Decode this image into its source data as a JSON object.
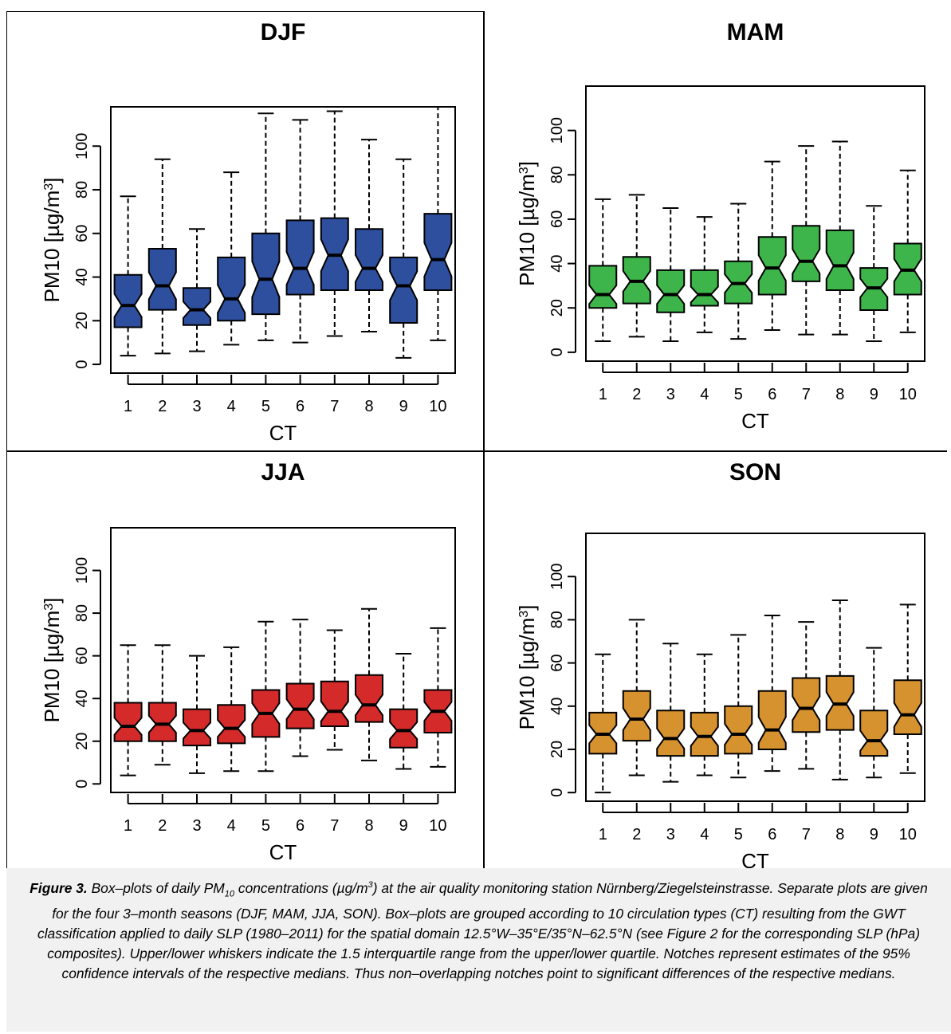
{
  "figure": {
    "caption_label": "Figure 3.",
    "caption_parts": {
      "a": " Box–plots of daily PM",
      "a_sub": "10",
      "b": " concentrations (µg/m",
      "b_sup": "3",
      "c": ") at the air quality monitoring station Nürnberg/Ziegelsteinstrasse. Separate plots are given for the four 3–month seasons (DJF, MAM, JJA, SON). Box–plots are grouped according to 10 circulation types (CT) resulting from the GWT classification applied to daily SLP (1980–2011) for the spatial domain 12.5°W–35°E/35°N–62.5°N (see Figure 2 for the corresponding SLP (hPa) composites). Upper/lower whiskers indicate the 1.5 interquartile range from the upper/lower quartile. Notches represent estimates of the 95% confidence intervals of the respective medians. Thus non–overlapping notches point to significant differences of the respective medians."
    }
  },
  "chart_data": [
    {
      "type": "boxplot",
      "title": "DJF",
      "xlabel": "CT",
      "ylabel_base": "PM10 [µg/m",
      "ylabel_sup": "3",
      "ylabel_close": "]",
      "ylim": [
        -4,
        118
      ],
      "yticks": [
        "0",
        "20",
        "40",
        "60",
        "80",
        "100"
      ],
      "categories": [
        "1",
        "2",
        "3",
        "4",
        "5",
        "6",
        "7",
        "8",
        "9",
        "10"
      ],
      "color": "#2d4f9e",
      "boxes": [
        {
          "whisker_low": 4,
          "q1": 17,
          "median": 27,
          "q3": 41,
          "whisker_high": 77
        },
        {
          "whisker_low": 5,
          "q1": 25,
          "median": 36,
          "q3": 53,
          "whisker_high": 94
        },
        {
          "whisker_low": 6,
          "q1": 18,
          "median": 25,
          "q3": 35,
          "whisker_high": 62
        },
        {
          "whisker_low": 9,
          "q1": 20,
          "median": 30,
          "q3": 49,
          "whisker_high": 88
        },
        {
          "whisker_low": 11,
          "q1": 23,
          "median": 39,
          "q3": 60,
          "whisker_high": 115
        },
        {
          "whisker_low": 10,
          "q1": 32,
          "median": 44,
          "q3": 66,
          "whisker_high": 112
        },
        {
          "whisker_low": 13,
          "q1": 34,
          "median": 50,
          "q3": 67,
          "whisker_high": 116
        },
        {
          "whisker_low": 15,
          "q1": 34,
          "median": 44,
          "q3": 62,
          "whisker_high": 103
        },
        {
          "whisker_low": 3,
          "q1": 19,
          "median": 36,
          "q3": 49,
          "whisker_high": 94
        },
        {
          "whisker_low": 11,
          "q1": 34,
          "median": 48,
          "q3": 69,
          "whisker_high": 118
        }
      ]
    },
    {
      "type": "boxplot",
      "title": "MAM",
      "xlabel": "CT",
      "ylabel_base": "PM10 [µg/m",
      "ylabel_sup": "3",
      "ylabel_close": "]",
      "ylim": [
        -4,
        120
      ],
      "yticks": [
        "0",
        "20",
        "40",
        "60",
        "80",
        "100"
      ],
      "categories": [
        "1",
        "2",
        "3",
        "4",
        "5",
        "6",
        "7",
        "8",
        "9",
        "10"
      ],
      "color": "#3db54a",
      "boxes": [
        {
          "whisker_low": 5,
          "q1": 20,
          "median": 26,
          "q3": 39,
          "whisker_high": 69
        },
        {
          "whisker_low": 7,
          "q1": 22,
          "median": 32,
          "q3": 43,
          "whisker_high": 71
        },
        {
          "whisker_low": 5,
          "q1": 18,
          "median": 26,
          "q3": 37,
          "whisker_high": 65
        },
        {
          "whisker_low": 9,
          "q1": 21,
          "median": 26,
          "q3": 37,
          "whisker_high": 61
        },
        {
          "whisker_low": 6,
          "q1": 22,
          "median": 31,
          "q3": 41,
          "whisker_high": 67
        },
        {
          "whisker_low": 10,
          "q1": 26,
          "median": 38,
          "q3": 52,
          "whisker_high": 86
        },
        {
          "whisker_low": 8,
          "q1": 32,
          "median": 41,
          "q3": 57,
          "whisker_high": 93
        },
        {
          "whisker_low": 8,
          "q1": 28,
          "median": 39,
          "q3": 55,
          "whisker_high": 95
        },
        {
          "whisker_low": 5,
          "q1": 19,
          "median": 29,
          "q3": 38,
          "whisker_high": 66
        },
        {
          "whisker_low": 9,
          "q1": 26,
          "median": 37,
          "q3": 49,
          "whisker_high": 82
        }
      ]
    },
    {
      "type": "boxplot",
      "title": "JJA",
      "xlabel": "CT",
      "ylabel_base": "PM10 [µg/m",
      "ylabel_sup": "3",
      "ylabel_close": "]",
      "ylim": [
        -4,
        120
      ],
      "yticks": [
        "0",
        "20",
        "40",
        "60",
        "80",
        "100"
      ],
      "categories": [
        "1",
        "2",
        "3",
        "4",
        "5",
        "6",
        "7",
        "8",
        "9",
        "10"
      ],
      "color": "#d42a2a",
      "boxes": [
        {
          "whisker_low": 4,
          "q1": 20,
          "median": 27,
          "q3": 38,
          "whisker_high": 65
        },
        {
          "whisker_low": 9,
          "q1": 20,
          "median": 28,
          "q3": 38,
          "whisker_high": 65
        },
        {
          "whisker_low": 5,
          "q1": 18,
          "median": 25,
          "q3": 35,
          "whisker_high": 60
        },
        {
          "whisker_low": 6,
          "q1": 19,
          "median": 26,
          "q3": 37,
          "whisker_high": 64
        },
        {
          "whisker_low": 6,
          "q1": 22,
          "median": 33,
          "q3": 44,
          "whisker_high": 76
        },
        {
          "whisker_low": 13,
          "q1": 26,
          "median": 35,
          "q3": 47,
          "whisker_high": 77
        },
        {
          "whisker_low": 16,
          "q1": 27,
          "median": 34,
          "q3": 48,
          "whisker_high": 72
        },
        {
          "whisker_low": 11,
          "q1": 29,
          "median": 37,
          "q3": 51,
          "whisker_high": 82
        },
        {
          "whisker_low": 7,
          "q1": 17,
          "median": 25,
          "q3": 35,
          "whisker_high": 61
        },
        {
          "whisker_low": 8,
          "q1": 24,
          "median": 34,
          "q3": 44,
          "whisker_high": 73
        }
      ]
    },
    {
      "type": "boxplot",
      "title": "SON",
      "xlabel": "CT",
      "ylabel_base": "PM10 [µg/m",
      "ylabel_sup": "3",
      "ylabel_close": "]",
      "ylim": [
        -4,
        120
      ],
      "yticks": [
        "0",
        "20",
        "40",
        "60",
        "80",
        "100"
      ],
      "categories": [
        "1",
        "2",
        "3",
        "4",
        "5",
        "6",
        "7",
        "8",
        "9",
        "10"
      ],
      "color": "#d6922e",
      "boxes": [
        {
          "whisker_low": 0,
          "q1": 18,
          "median": 27,
          "q3": 37,
          "whisker_high": 64
        },
        {
          "whisker_low": 8,
          "q1": 24,
          "median": 34,
          "q3": 47,
          "whisker_high": 80
        },
        {
          "whisker_low": 5,
          "q1": 17,
          "median": 25,
          "q3": 38,
          "whisker_high": 69
        },
        {
          "whisker_low": 8,
          "q1": 17,
          "median": 26,
          "q3": 37,
          "whisker_high": 64
        },
        {
          "whisker_low": 7,
          "q1": 18,
          "median": 27,
          "q3": 40,
          "whisker_high": 73
        },
        {
          "whisker_low": 10,
          "q1": 20,
          "median": 29,
          "q3": 47,
          "whisker_high": 82
        },
        {
          "whisker_low": 11,
          "q1": 28,
          "median": 39,
          "q3": 53,
          "whisker_high": 79
        },
        {
          "whisker_low": 6,
          "q1": 29,
          "median": 41,
          "q3": 54,
          "whisker_high": 89
        },
        {
          "whisker_low": 7,
          "q1": 17,
          "median": 24,
          "q3": 38,
          "whisker_high": 67
        },
        {
          "whisker_low": 9,
          "q1": 27,
          "median": 36,
          "q3": 52,
          "whisker_high": 87
        }
      ]
    }
  ]
}
